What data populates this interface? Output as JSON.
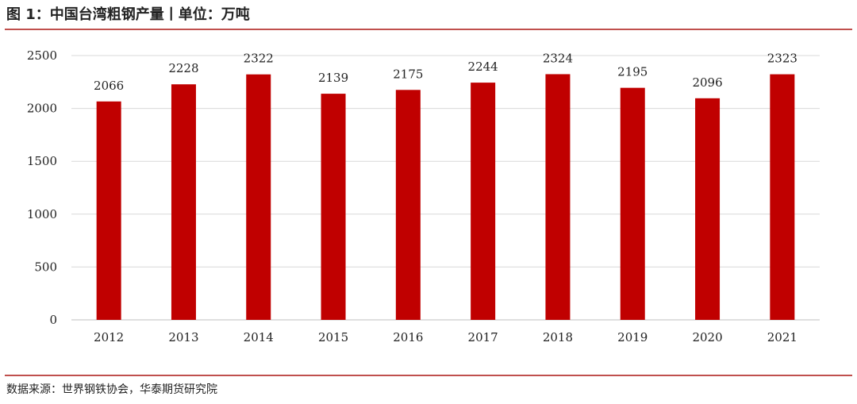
{
  "figure": {
    "title": "图 1：中国台湾粗钢产量丨单位：万吨",
    "source": "数据来源：世界钢铁协会，华泰期货研究院"
  },
  "chart_data": {
    "type": "bar",
    "title": "图 1：中国台湾粗钢产量丨单位：万吨",
    "categories": [
      "2012",
      "2013",
      "2014",
      "2015",
      "2016",
      "2017",
      "2018",
      "2019",
      "2020",
      "2021"
    ],
    "values": [
      2066,
      2228,
      2322,
      2139,
      2175,
      2244,
      2324,
      2195,
      2096,
      2323
    ],
    "ylim": [
      0,
      2500
    ],
    "yticks": [
      0,
      500,
      1000,
      1500,
      2000,
      2500
    ],
    "grid": true,
    "legend": "none",
    "data_labels": true,
    "colors": {
      "bar": "#c00000",
      "grid": "#d9d9d9",
      "axis": "#bfbfbf"
    }
  }
}
